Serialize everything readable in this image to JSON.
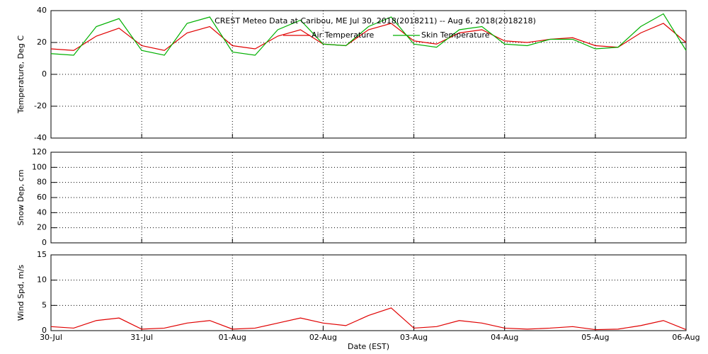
{
  "chart_data": [
    {
      "type": "line",
      "title": "CREST Meteo Data at Caribou, ME   Jul 30, 2018(2018211) -- Aug  6, 2018(2018218)",
      "ylabel": "Temperature, Deg C",
      "x": [
        0,
        0.25,
        0.5,
        0.75,
        1,
        1.25,
        1.5,
        1.75,
        2,
        2.25,
        2.5,
        2.75,
        3,
        3.25,
        3.5,
        3.75,
        4,
        4.25,
        4.5,
        4.75,
        5,
        5.25,
        5.5,
        5.75,
        6,
        6.25,
        6.5,
        6.75,
        7
      ],
      "xlim": [
        0,
        7
      ],
      "xticks": [
        0,
        1,
        2,
        3,
        4,
        5,
        6,
        7
      ],
      "ylim": [
        -40,
        40
      ],
      "yticks": [
        -40,
        -20,
        0,
        20,
        40
      ],
      "grid": true,
      "series": [
        {
          "name": "Air Temperature",
          "color": "#e00000",
          "values": [
            16,
            15,
            24,
            29,
            18,
            15,
            26,
            30,
            18,
            16,
            24,
            28,
            19,
            18,
            28,
            32,
            21,
            19,
            26,
            28,
            21,
            20,
            22,
            23,
            18,
            17,
            26,
            32,
            20
          ]
        },
        {
          "name": "Skin Temperature",
          "color": "#00b000",
          "values": [
            13,
            12,
            30,
            35,
            15,
            12,
            32,
            36,
            14,
            12,
            28,
            34,
            19,
            18,
            30,
            36,
            19,
            17,
            28,
            30,
            19,
            18,
            22,
            22,
            16,
            17,
            30,
            38,
            15
          ]
        }
      ]
    },
    {
      "type": "line",
      "ylabel": "Snow Dep, cm",
      "xlim": [
        0,
        7
      ],
      "xticks": [
        0,
        1,
        2,
        3,
        4,
        5,
        6,
        7
      ],
      "ylim": [
        0,
        120
      ],
      "yticks": [
        0,
        20,
        40,
        60,
        80,
        100,
        120
      ],
      "grid": true
    },
    {
      "type": "line",
      "ylabel": "Wind Spd, m/s",
      "xlabel": "Date (EST)",
      "x": [
        0,
        0.25,
        0.5,
        0.75,
        1,
        1.25,
        1.5,
        1.75,
        2,
        2.25,
        2.5,
        2.75,
        3,
        3.25,
        3.5,
        3.75,
        4,
        4.25,
        4.5,
        4.75,
        5,
        5.25,
        5.5,
        5.75,
        6,
        6.25,
        6.5,
        6.75,
        7
      ],
      "xlim": [
        0,
        7
      ],
      "xticks": [
        {
          "value": 0,
          "label": "30-Jul"
        },
        {
          "value": 1,
          "label": "31-Jul"
        },
        {
          "value": 2,
          "label": "01-Aug"
        },
        {
          "value": 3,
          "label": "02-Aug"
        },
        {
          "value": 4,
          "label": "03-Aug"
        },
        {
          "value": 5,
          "label": "04-Aug"
        },
        {
          "value": 6,
          "label": "05-Aug"
        },
        {
          "value": 7,
          "label": "06-Aug"
        }
      ],
      "ylim": [
        0,
        15
      ],
      "yticks": [
        0,
        5,
        10,
        15
      ],
      "grid": true,
      "series": [
        {
          "color": "#e00000",
          "values": [
            0.8,
            0.5,
            2,
            2.5,
            0.3,
            0.5,
            1.5,
            2,
            0.3,
            0.5,
            1.5,
            2.5,
            1.5,
            1,
            3,
            4.5,
            0.5,
            0.8,
            2,
            1.5,
            0.5,
            0.3,
            0.5,
            0.8,
            0.2,
            0.3,
            1,
            2,
            0.2
          ]
        }
      ]
    }
  ]
}
